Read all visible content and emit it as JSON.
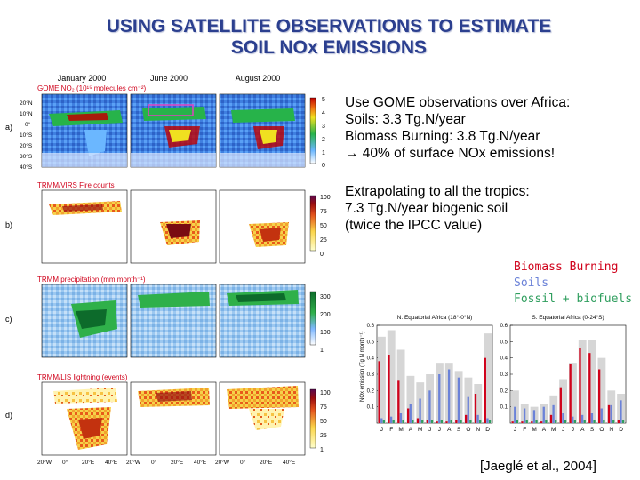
{
  "title": {
    "line1": "USING SATELLITE OBSERVATIONS TO ESTIMATE",
    "line2": "SOIL NOx EMISSIONS"
  },
  "colors": {
    "title": "#2b3f8f",
    "biomass": "#d0021b",
    "soils": "#6b82d8",
    "fossil": "#2f9e5e",
    "panel_label": "#d0021b"
  },
  "maps": {
    "col_headers": [
      "January 2000",
      "June 2000",
      "August 2000"
    ],
    "rows": [
      {
        "letter": "a)",
        "label": "GOME NO₂ (10¹⁵ molecules cm⁻²)",
        "scale": [
          "5",
          "4",
          "3",
          "2",
          "1",
          "0"
        ]
      },
      {
        "letter": "b)",
        "label": "TRMM/VIRS Fire counts",
        "scale": [
          "100",
          "75",
          "50",
          "25",
          "0"
        ]
      },
      {
        "letter": "c)",
        "label": "TRMM precipitation (mm month⁻¹)",
        "scale": [
          "300",
          "200",
          "100",
          "1"
        ]
      },
      {
        "letter": "d)",
        "label": "TRMM/LIS lightning (events)",
        "scale": [
          "100",
          "75",
          "50",
          "25",
          "1"
        ]
      }
    ],
    "lat_ticks": [
      "20°N",
      "10°N",
      "0°",
      "10°S",
      "20°S",
      "30°S",
      "40°S"
    ],
    "lon_ticks": [
      "20°W",
      "0°",
      "20°E",
      "40°E",
      "20°W",
      "0°",
      "20°E",
      "40°E",
      "20°W",
      "0°",
      "20°E",
      "40°E"
    ]
  },
  "notes": {
    "block1": [
      "Use GOME observations over Africa:",
      "Soils: 3.3 Tg.N/year",
      "Biomass Burning: 3.8  Tg.N/year",
      "→ 40% of surface NOx emissions!"
    ],
    "block2": [
      "Extrapolating to all the tropics:",
      "7.3 Tg.N/year biogenic soil",
      "(twice the IPCC value)"
    ]
  },
  "legend": {
    "biomass": "Biomass Burning",
    "soils": "Soils",
    "fossil": "Fossil + biofuels"
  },
  "chart_data": {
    "type": "bar",
    "ylabel": "NOx emission (Tg N month⁻¹)",
    "ylim": [
      0,
      0.6
    ],
    "y_ticks": [
      "0.6",
      "0.5",
      "0.4",
      "0.3",
      "0.2",
      "0.1"
    ],
    "categories": [
      "J",
      "F",
      "M",
      "A",
      "M",
      "J",
      "J",
      "A",
      "S",
      "O",
      "N",
      "D"
    ],
    "panels": [
      {
        "title": "N. Equatorial Africa (18°-0°N)",
        "total": [
          0.53,
          0.57,
          0.45,
          0.29,
          0.25,
          0.3,
          0.37,
          0.37,
          0.32,
          0.28,
          0.24,
          0.55
        ],
        "series": [
          {
            "name": "Biomass Burning",
            "values": [
              0.38,
              0.42,
              0.26,
              0.09,
              0.03,
              0.02,
              0.01,
              0.01,
              0.02,
              0.05,
              0.18,
              0.4
            ]
          },
          {
            "name": "Soils",
            "values": [
              0.03,
              0.04,
              0.06,
              0.12,
              0.15,
              0.2,
              0.3,
              0.33,
              0.28,
              0.16,
              0.05,
              0.03
            ]
          },
          {
            "name": "Fossil + biofuels",
            "values": [
              0.02,
              0.02,
              0.02,
              0.02,
              0.02,
              0.02,
              0.02,
              0.02,
              0.02,
              0.02,
              0.02,
              0.02
            ]
          }
        ]
      },
      {
        "title": "S. Equatorial Africa (0-24°S)",
        "total": [
          0.2,
          0.12,
          0.1,
          0.12,
          0.17,
          0.27,
          0.37,
          0.51,
          0.51,
          0.4,
          0.2,
          0.18
        ],
        "series": [
          {
            "name": "Biomass Burning",
            "values": [
              0.01,
              0.01,
              0.01,
              0.01,
              0.05,
              0.22,
              0.36,
              0.46,
              0.43,
              0.33,
              0.11,
              0.02
            ]
          },
          {
            "name": "Soils",
            "values": [
              0.1,
              0.09,
              0.08,
              0.1,
              0.11,
              0.06,
              0.04,
              0.05,
              0.06,
              0.09,
              0.11,
              0.14
            ]
          },
          {
            "name": "Fossil + biofuels",
            "values": [
              0.02,
              0.02,
              0.02,
              0.02,
              0.02,
              0.02,
              0.02,
              0.02,
              0.02,
              0.02,
              0.02,
              0.02
            ]
          }
        ]
      }
    ]
  },
  "citation": "[Jaeglé et al., 2004]"
}
